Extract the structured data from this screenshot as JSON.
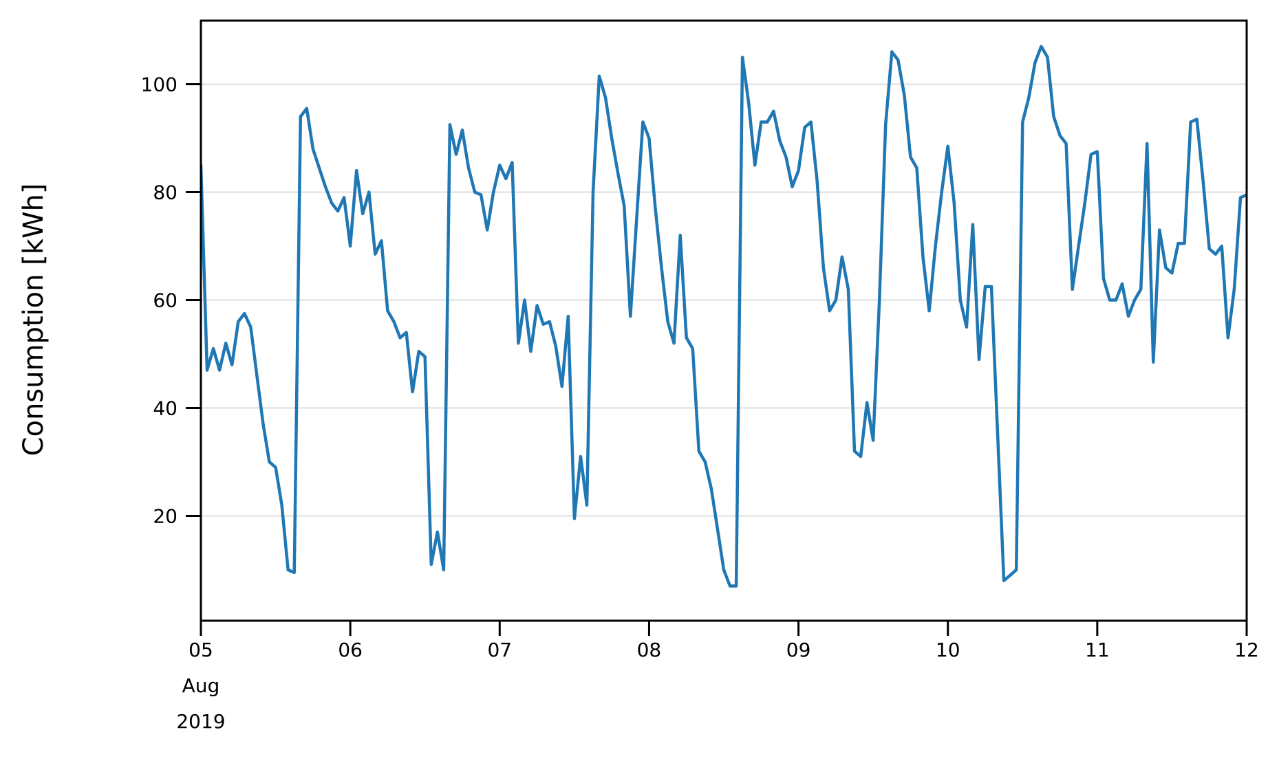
{
  "chart_data": {
    "type": "line",
    "title": "",
    "xlabel": "",
    "ylabel": "Consumption [kWh]",
    "x_start": "2019-08-05 00:00",
    "x_end": "2019-08-12 00:00",
    "x_interval_hours": 1,
    "x_tick_labels": [
      "05",
      "06",
      "07",
      "08",
      "09",
      "10",
      "11",
      "12"
    ],
    "x_first_tick_sublabels": [
      "Aug",
      "2019"
    ],
    "y_ticks": [
      20,
      40,
      60,
      80,
      100
    ],
    "ylim": [
      0.5,
      112
    ],
    "grid": "horizontal-only",
    "legend": "none",
    "line_color": "#1f77b4",
    "gridline_color": "#d9d9d9",
    "axis_color": "#000000",
    "background_color": "#ffffff",
    "series": [
      {
        "name": "Consumption",
        "values": [
          85,
          47,
          51,
          47,
          52,
          48,
          56,
          57.5,
          55,
          46,
          37,
          30,
          29,
          22,
          10,
          9.5,
          94,
          95.5,
          88,
          84.5,
          81,
          78,
          76.5,
          79,
          70,
          84,
          76,
          80,
          68.5,
          71,
          58,
          56,
          53,
          54,
          43,
          50.5,
          49.5,
          11,
          17,
          10,
          92.5,
          87,
          91.5,
          84.5,
          80,
          79.5,
          73,
          80,
          85,
          82.5,
          85.5,
          52,
          60,
          50.5,
          59,
          55.5,
          56,
          51.5,
          44,
          57,
          19.5,
          31,
          22,
          80,
          101.5,
          97.5,
          90,
          83.5,
          77.5,
          57,
          75,
          93,
          90,
          77,
          66,
          56,
          52,
          72,
          53,
          51,
          32,
          30,
          25,
          17.5,
          10,
          7,
          7,
          105,
          96.5,
          85,
          93,
          93,
          95,
          89.5,
          86.5,
          81,
          84,
          92,
          93,
          82,
          66,
          58,
          60,
          68,
          62,
          32,
          31,
          41,
          34,
          60,
          92.5,
          106,
          104.5,
          98,
          86.5,
          84.5,
          68,
          58,
          70,
          80,
          88.5,
          78,
          60,
          55,
          74,
          49,
          62.5,
          62.5,
          35,
          8,
          9,
          10,
          93,
          97.5,
          104,
          107,
          105,
          94,
          90.5,
          89,
          62,
          70,
          78,
          87,
          87.5,
          64,
          60,
          60,
          63,
          57,
          60,
          62,
          89,
          48.5,
          73,
          66,
          65,
          70.5,
          70.5,
          93,
          93.5,
          82,
          69.5,
          68.5,
          70,
          53,
          62,
          79,
          79.5
        ]
      }
    ]
  }
}
